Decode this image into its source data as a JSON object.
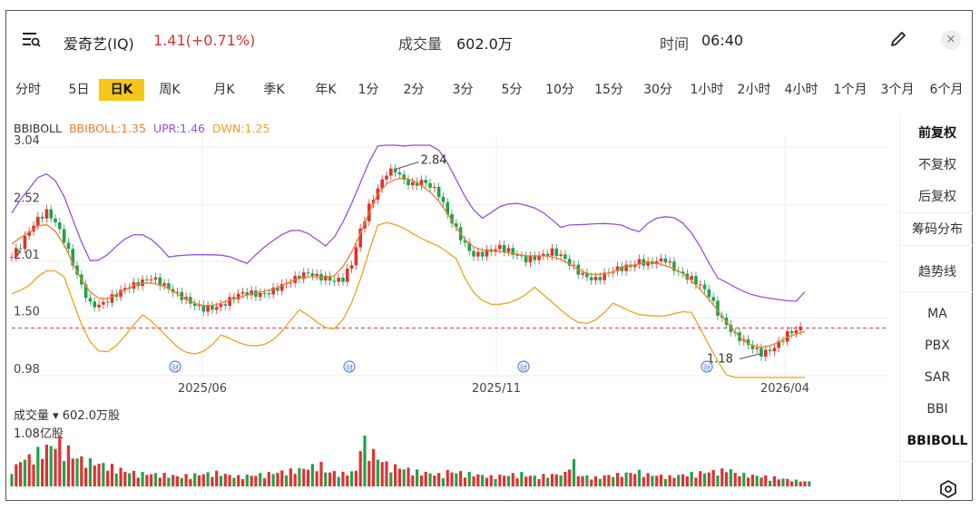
{
  "header": {
    "stock_name": "爱奇艺(IQ)",
    "price_change": "1.41(+0.71%)",
    "volume_label": "成交量",
    "volume_value": "602.0万",
    "time_label": "时间",
    "time_value": "06:40",
    "close_glyph": "×"
  },
  "periods": [
    "分时",
    "5日",
    "日K",
    "周K",
    "月K",
    "季K",
    "年K",
    "1分",
    "2分",
    "3分",
    "5分",
    "10分",
    "15分",
    "30分",
    "1小时",
    "2小时",
    "4小时",
    "1个月",
    "3个月",
    "6个月"
  ],
  "active_period": "日K",
  "indicator": {
    "name": "BBIBOLL",
    "bbiboll": "BBIBOLL:1.35",
    "upr": "UPR:1.46",
    "dwn": "DWN:1.25"
  },
  "volume_panel": {
    "label": "成交量 ▾ 602.0万股",
    "max_label": "1.08亿股"
  },
  "sidebar": {
    "adjust": [
      "前复权",
      "不复权",
      "后复权"
    ],
    "chips": "筹码分布",
    "trend": "趋势线",
    "indicators": [
      "MA",
      "PBX",
      "SAR",
      "BBI",
      "BBIBOLL"
    ]
  },
  "colors": {
    "up": "#e0312f",
    "down": "#1fa34a",
    "bbiboll": "#f07c2c",
    "upr": "#9b4de0",
    "dwn": "#f0a020",
    "active_tab": "#f5c518"
  },
  "chart_data": {
    "type": "candlestick",
    "indicator": "BBIBOLL",
    "y_axis_ticks": [
      "3.04",
      "2.52",
      "2.01",
      "1.50",
      "0.98"
    ],
    "x_axis_ticks": [
      "2025/06",
      "2025/11",
      "2026/04"
    ],
    "annotations": {
      "high": "2.84",
      "low": "1.18"
    },
    "current_price": 1.41,
    "current_price_line": "dashed red",
    "event_marker_glyph": "财",
    "ylim": [
      0.98,
      3.04
    ],
    "close_series": [
      2.05,
      2.15,
      2.3,
      2.4,
      2.45,
      2.35,
      2.2,
      2.0,
      1.8,
      1.62,
      1.6,
      1.65,
      1.72,
      1.78,
      1.8,
      1.82,
      1.85,
      1.82,
      1.78,
      1.72,
      1.66,
      1.6,
      1.58,
      1.6,
      1.62,
      1.66,
      1.7,
      1.72,
      1.72,
      1.73,
      1.75,
      1.78,
      1.82,
      1.88,
      1.92,
      1.88,
      1.85,
      1.82,
      1.85,
      2.0,
      2.3,
      2.5,
      2.65,
      2.8,
      2.84,
      2.75,
      2.7,
      2.72,
      2.68,
      2.62,
      2.45,
      2.3,
      2.15,
      2.05,
      2.08,
      2.12,
      2.15,
      2.1,
      2.05,
      2.02,
      2.05,
      2.08,
      2.1,
      2.05,
      1.98,
      1.92,
      1.88,
      1.85,
      1.88,
      1.92,
      1.95,
      1.98,
      2.02,
      1.98,
      2.0,
      2.02,
      1.95,
      1.9,
      1.85,
      1.78,
      1.7,
      1.55,
      1.45,
      1.35,
      1.28,
      1.22,
      1.18,
      1.22,
      1.28,
      1.35,
      1.38,
      1.41
    ],
    "volume_series": [
      40,
      55,
      60,
      70,
      80,
      90,
      75,
      60,
      55,
      50,
      45,
      40,
      35,
      30,
      28,
      26,
      25,
      24,
      22,
      20,
      22,
      24,
      26,
      28,
      25,
      22,
      20,
      22,
      24,
      26,
      28,
      30,
      32,
      35,
      40,
      45,
      30,
      28,
      26,
      30,
      90,
      70,
      55,
      45,
      40,
      35,
      30,
      28,
      26,
      24,
      30,
      28,
      26,
      24,
      22,
      20,
      22,
      24,
      26,
      22,
      20,
      22,
      24,
      26,
      50,
      22,
      20,
      18,
      22,
      24,
      26,
      28,
      30,
      24,
      22,
      20,
      22,
      24,
      26,
      28,
      30,
      32,
      34,
      26,
      24,
      22,
      20,
      18,
      16,
      14,
      12,
      10
    ]
  }
}
